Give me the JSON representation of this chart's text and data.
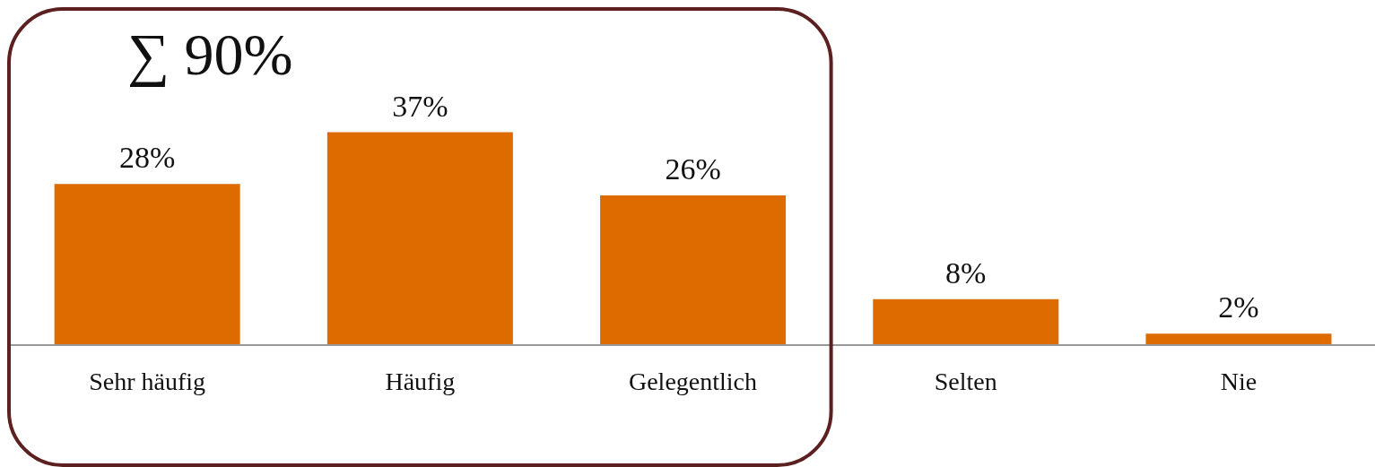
{
  "chart_data": {
    "type": "bar",
    "categories": [
      "Sehr häufig",
      "Häufig",
      "Gelegentlich",
      "Selten",
      "Nie"
    ],
    "values": [
      28,
      37,
      26,
      8,
      2
    ],
    "value_labels": [
      "28%",
      "37%",
      "26%",
      "8%",
      "2%"
    ],
    "color": "#dd6b00",
    "annotations": [
      "∑ 90%"
    ]
  }
}
